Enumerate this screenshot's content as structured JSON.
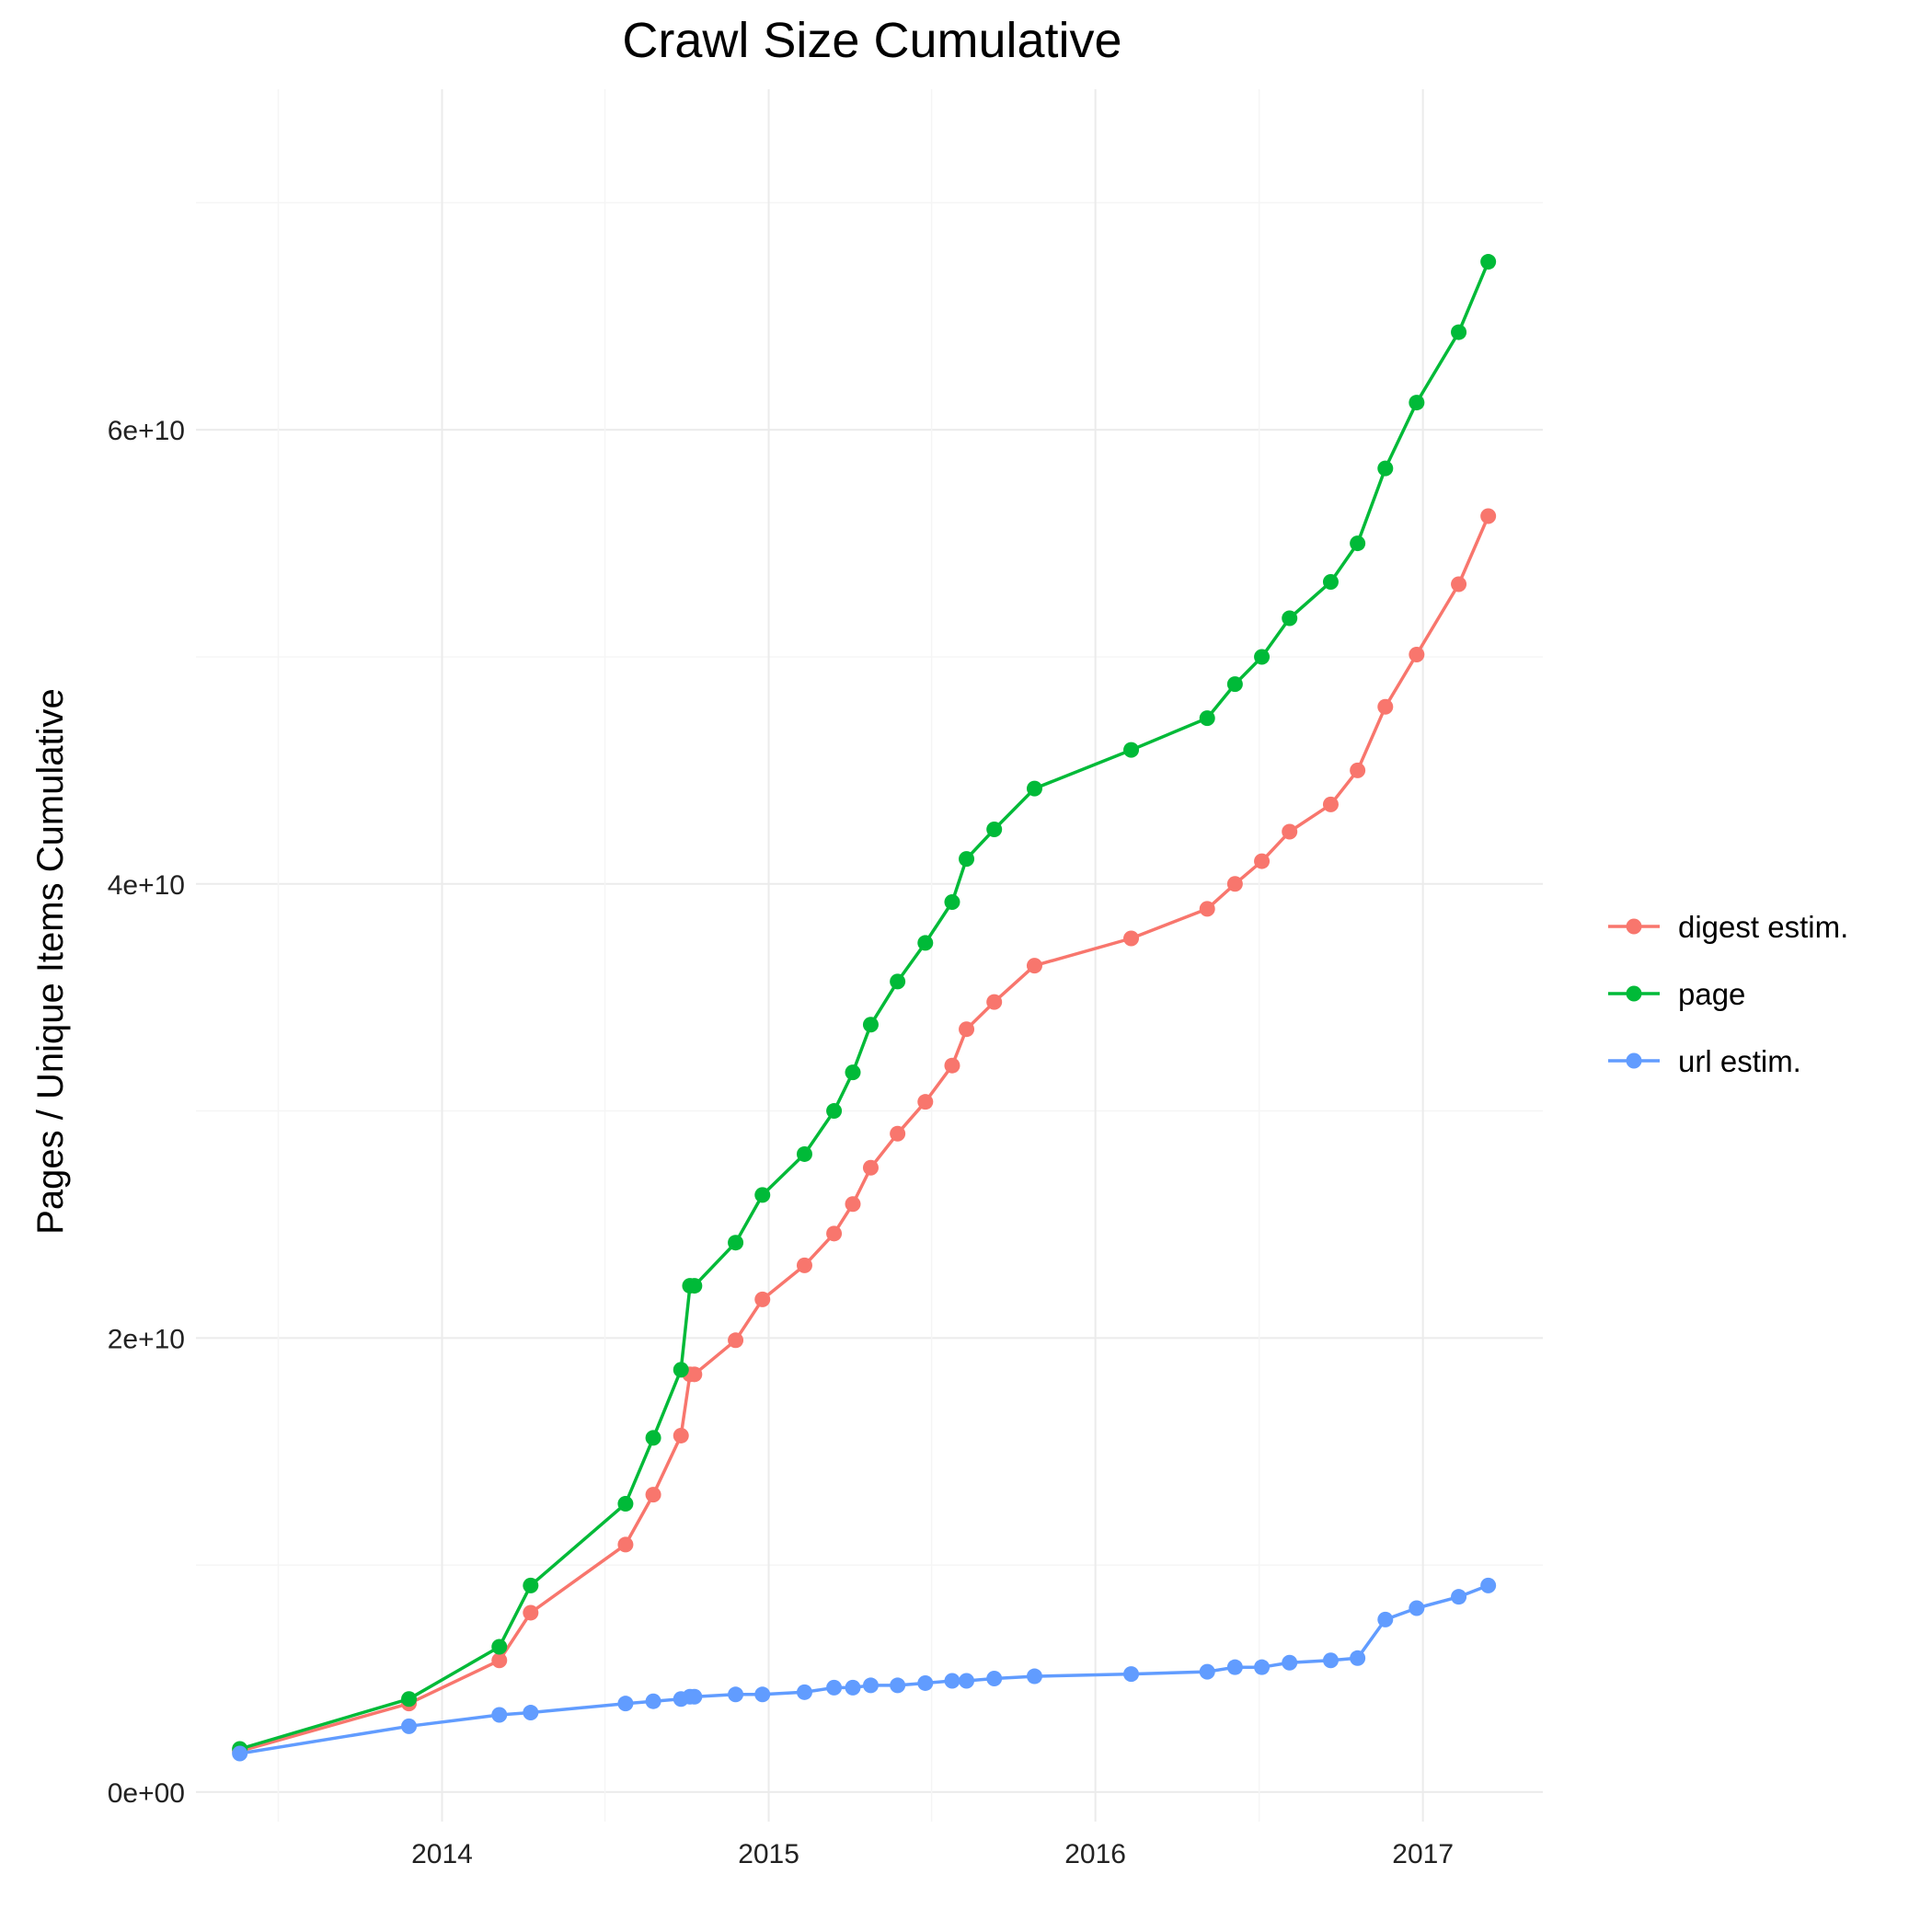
{
  "chart_data": {
    "type": "line",
    "title": "Crawl Size Cumulative",
    "xlabel": "",
    "ylabel": "Pages / Unique Items Cumulative",
    "x_ticks": [
      "2014",
      "2015",
      "2016",
      "2017"
    ],
    "y_ticks": [
      "0e+00",
      "2e+10",
      "4e+10",
      "6e+10"
    ],
    "xlim": [
      "2013-04-01",
      "2017-05-15"
    ],
    "ylim": [
      -1300000000.0,
      75000000000.0
    ],
    "grid": true,
    "legend_position": "right",
    "x": [
      "2013-05-20",
      "2013-11-25",
      "2014-03-06",
      "2014-04-10",
      "2014-07-25",
      "2014-08-25",
      "2014-09-25",
      "2014-10-05",
      "2014-10-10",
      "2014-11-25",
      "2014-12-25",
      "2015-02-10",
      "2015-03-15",
      "2015-04-05",
      "2015-04-25",
      "2015-05-25",
      "2015-06-25",
      "2015-07-25",
      "2015-08-10",
      "2015-09-10",
      "2015-10-25",
      "2016-02-10",
      "2016-05-05",
      "2016-06-05",
      "2016-07-05",
      "2016-08-05",
      "2016-09-20",
      "2016-10-20",
      "2016-11-20",
      "2016-12-25",
      "2017-02-10",
      "2017-03-15"
    ],
    "series": [
      {
        "name": "digest estim.",
        "color": "#f8766d",
        "values": [
          1800000000.0,
          3900000000.0,
          5800000000.0,
          7900000000.0,
          10900000000.0,
          13100000000.0,
          15700000000.0,
          18400000000.0,
          18400000000.0,
          19900000000.0,
          21700000000.0,
          23200000000.0,
          24600000000.0,
          25900000000.0,
          27500000000.0,
          29000000000.0,
          30400000000.0,
          32000000000.0,
          33600000000.0,
          34800000000.0,
          36400000000.0,
          37600000000.0,
          38900000000.0,
          40000000000.0,
          41000000000.0,
          42300000000.0,
          43500000000.0,
          45000000000.0,
          47800000000.0,
          50100000000.0,
          53200000000.0,
          56200000000.0
        ]
      },
      {
        "name": "page",
        "color": "#00ba38",
        "values": [
          1900000000.0,
          4100000000.0,
          6400000000.0,
          9100000000.0,
          12700000000.0,
          15600000000.0,
          18600000000.0,
          22300000000.0,
          22300000000.0,
          24200000000.0,
          26300000000.0,
          28100000000.0,
          30000000000.0,
          31700000000.0,
          33800000000.0,
          35700000000.0,
          37400000000.0,
          39200000000.0,
          41100000000.0,
          42400000000.0,
          44200000000.0,
          45900000000.0,
          47300000000.0,
          48800000000.0,
          50000000000.0,
          51700000000.0,
          53300000000.0,
          55000000000.0,
          58300000000.0,
          61200000000.0,
          64300000000.0,
          67400000000.0
        ]
      },
      {
        "name": "url estim.",
        "color": "#619cff",
        "values": [
          1700000000.0,
          2900000000.0,
          3400000000.0,
          3500000000.0,
          3900000000.0,
          4000000000.0,
          4100000000.0,
          4200000000.0,
          4200000000.0,
          4300000000.0,
          4300000000.0,
          4400000000.0,
          4600000000.0,
          4600000000.0,
          4700000000.0,
          4700000000.0,
          4800000000.0,
          4900000000.0,
          4900000000.0,
          5000000000.0,
          5100000000.0,
          5200000000.0,
          5300000000.0,
          5500000000.0,
          5500000000.0,
          5700000000.0,
          5800000000.0,
          5900000000.0,
          7600000000.0,
          8100000000.0,
          8600000000.0,
          9100000000.0
        ]
      }
    ]
  }
}
